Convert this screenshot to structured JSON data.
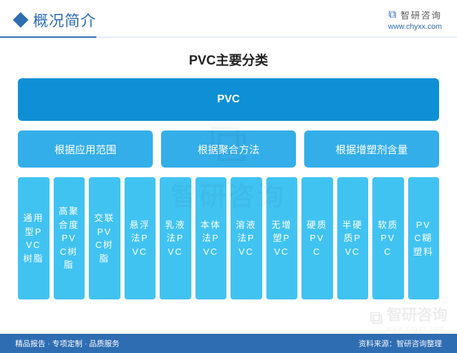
{
  "colors": {
    "accent": "#2f6db3",
    "root_bg": "#0f8fd6",
    "mid_bg": "#34aee8",
    "leaf_bg": "#41c3f2",
    "footer_bg": "#2f6db3",
    "page_bg": "#ffffff",
    "text_dark": "#222222",
    "text_light": "#ffffff"
  },
  "header": {
    "title": "概况简介",
    "brand_name": "智研咨询",
    "brand_url": "www.chyxx.com"
  },
  "diagram": {
    "type": "tree",
    "subtitle": "PVC主要分类",
    "root": {
      "label": "PVC"
    },
    "mids": [
      {
        "label": "根据应用范围"
      },
      {
        "label": "根据聚合方法"
      },
      {
        "label": "根据增塑剂含量"
      }
    ],
    "leaves": [
      {
        "label": "通用型PVC树脂"
      },
      {
        "label": "高聚合度PVC树脂"
      },
      {
        "label": "交联PVC树脂"
      },
      {
        "label": "悬浮法PVC"
      },
      {
        "label": "乳液法PVC"
      },
      {
        "label": "本体法PVC"
      },
      {
        "label": "溶液法PVC"
      },
      {
        "label": "无增塑PVC"
      },
      {
        "label": "硬质PVC"
      },
      {
        "label": "半硬质PVC"
      },
      {
        "label": "软质PVC"
      },
      {
        "label": "PVC糊塑料"
      }
    ],
    "leaf_fontsize": 13,
    "mid_fontsize": 15,
    "root_fontsize": 16,
    "subtitle_fontsize": 19,
    "border_radius": 6,
    "gap_mid": 12,
    "gap_leaf": 6
  },
  "footer": {
    "left": "精品报告 · 专项定制 · 品质服务",
    "right_prefix": "资料来源：",
    "right_source": "智研咨询整理"
  },
  "watermark": {
    "text": "智研咨询",
    "sub": "www.chyxx.com"
  }
}
